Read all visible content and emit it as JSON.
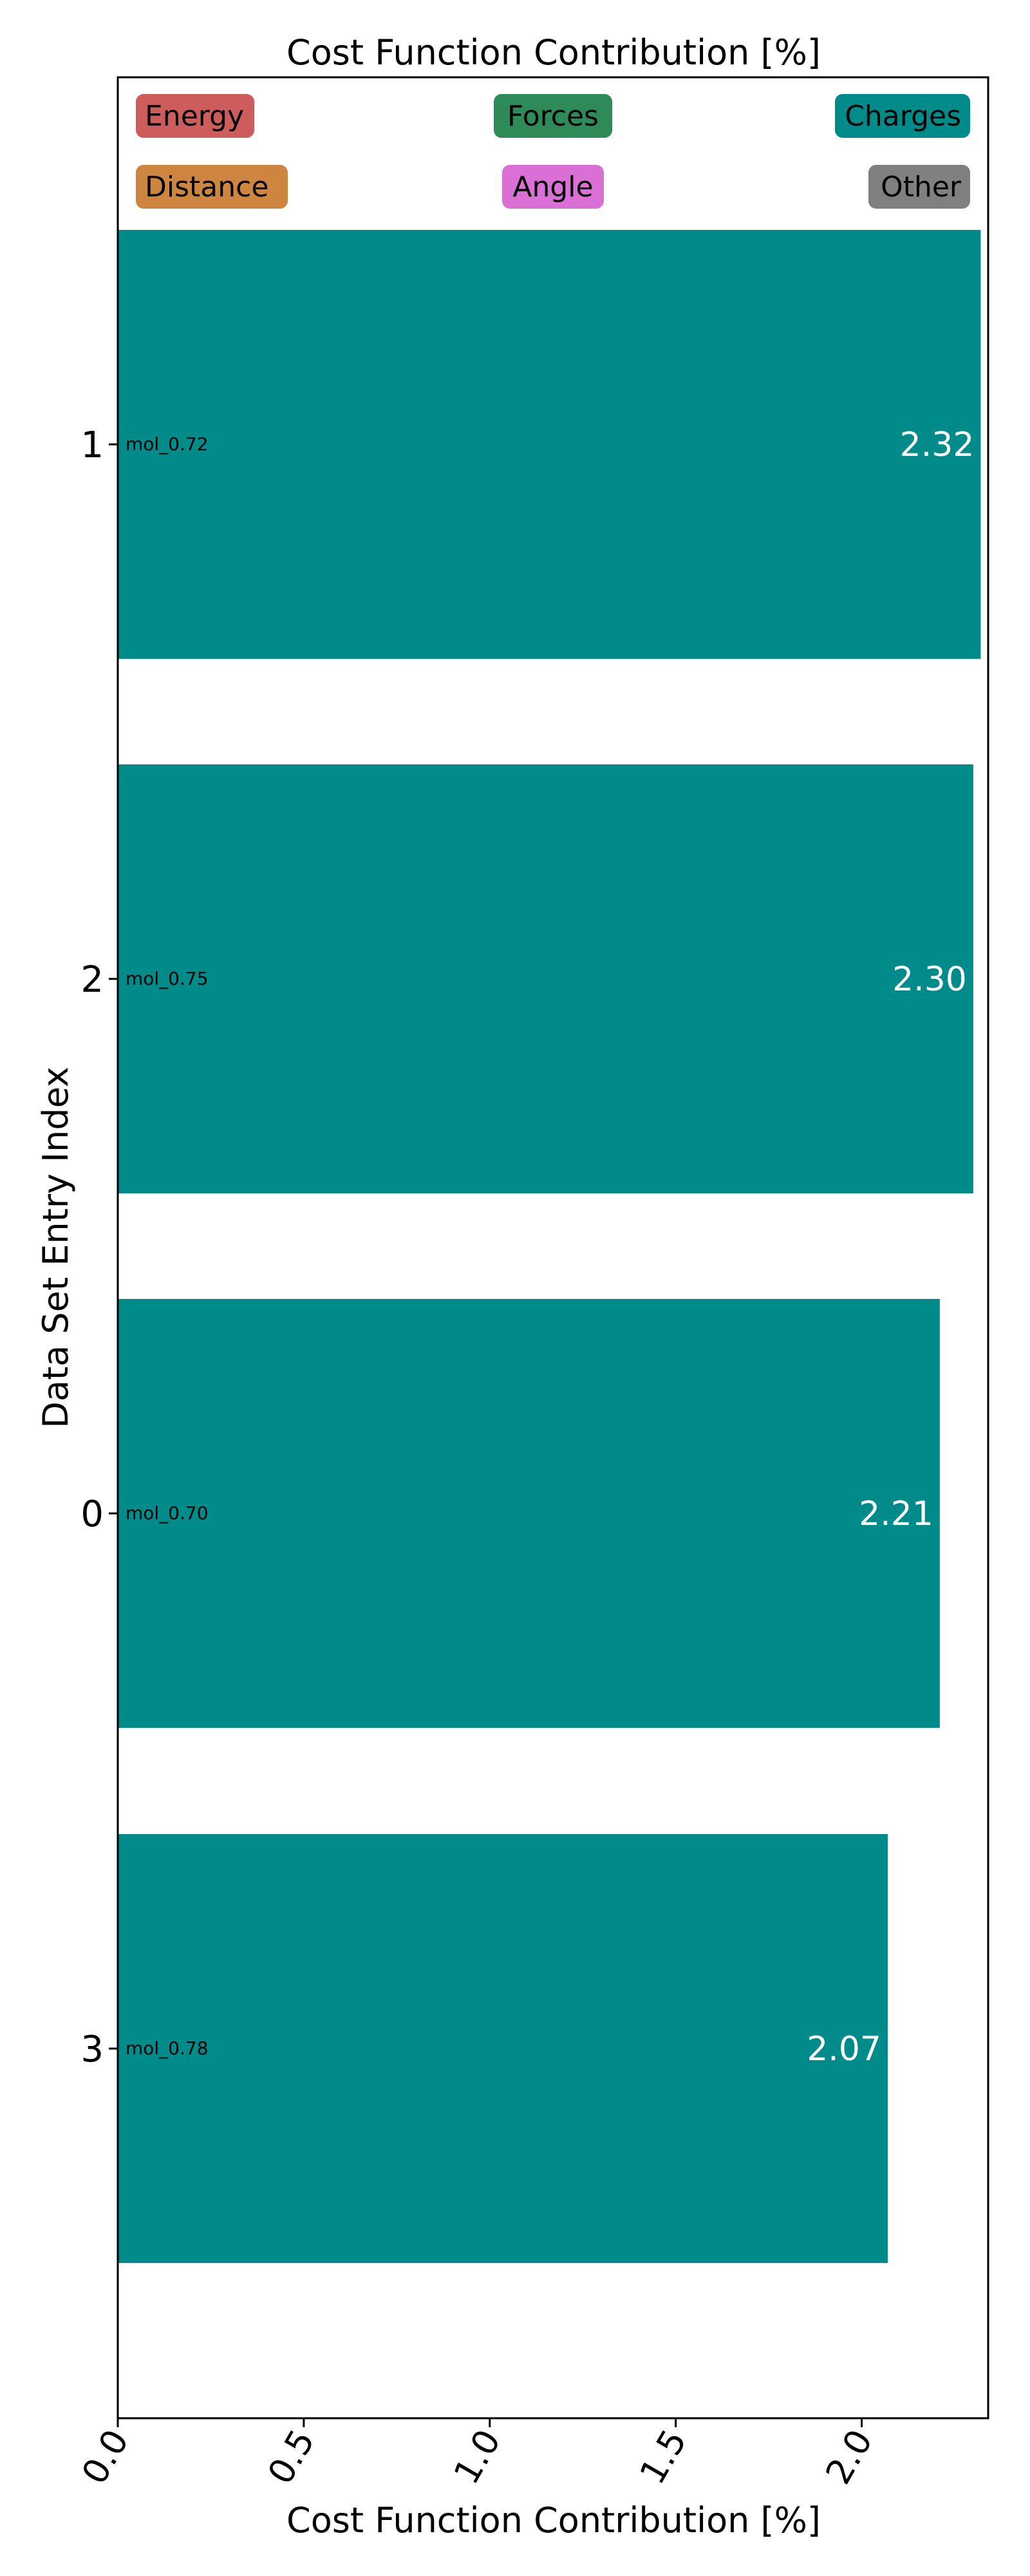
{
  "chart_data": {
    "type": "bar",
    "orientation": "horizontal",
    "title": "Cost Function Contribution [%]",
    "xlabel": "Cost Function Contribution [%]",
    "ylabel": "Data Set Entry Index",
    "xlim": [
      0,
      2.34
    ],
    "xticks": [
      "0.0",
      "0.5",
      "1.0",
      "1.5",
      "2.0"
    ],
    "grid": false,
    "legend_placement": "top",
    "bar_color": "#008b8b",
    "categories": [
      "1",
      "2",
      "0",
      "3"
    ],
    "bar_labels": [
      "mol_0.72",
      "mol_0.75",
      "mol_0.70",
      "mol_0.78"
    ],
    "values": [
      2.32,
      2.3,
      2.21,
      2.07
    ],
    "value_labels": [
      "2.32",
      "2.30",
      "2.21",
      "2.07"
    ],
    "legend": [
      {
        "label": "Energy",
        "color": "#cd5c5c"
      },
      {
        "label": "Forces",
        "color": "#2e8b57"
      },
      {
        "label": "Charges",
        "color": "#008b8b"
      },
      {
        "label": "Distance",
        "color": "#cd853f"
      },
      {
        "label": "Angle",
        "color": "#da70d6"
      },
      {
        "label": "Other",
        "color": "#808080"
      }
    ]
  }
}
